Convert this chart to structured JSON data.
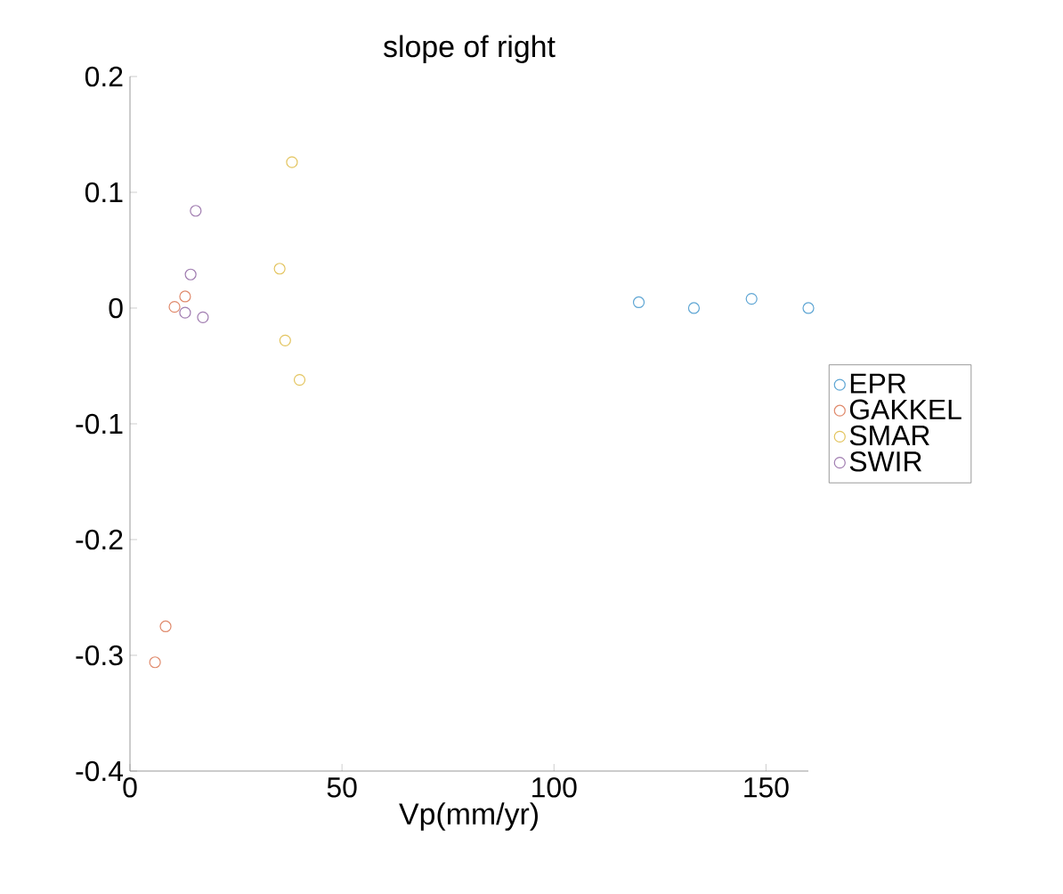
{
  "chart_data": {
    "type": "scatter",
    "title": "slope of right",
    "xlabel": "Vp(mm/yr)",
    "xlim": [
      0,
      160
    ],
    "xticks": [
      0,
      50,
      100,
      150
    ],
    "ylim": [
      -0.4,
      0.2
    ],
    "yticks": [
      -0.4,
      -0.3,
      -0.2,
      -0.1,
      0,
      0.1,
      0.2
    ],
    "marker": "circle",
    "legend": "right",
    "grid": false,
    "series": [
      {
        "name": "EPR",
        "color": "#5fa6d4",
        "x": [
          120,
          133,
          146.6,
          160
        ],
        "values": [
          0.005,
          0.0,
          0.008,
          0.0
        ]
      },
      {
        "name": "GAKKEL",
        "color": "#e08a6c",
        "x": [
          10.5,
          13,
          8.4,
          5.9
        ],
        "values": [
          0.001,
          0.01,
          -0.275,
          -0.306
        ]
      },
      {
        "name": "SMAR",
        "color": "#e3c45e",
        "x": [
          38.2,
          35.3,
          36.6,
          40
        ],
        "values": [
          0.126,
          0.034,
          -0.028,
          -0.062
        ]
      },
      {
        "name": "SWIR",
        "color": "#a07cb0",
        "x": [
          15.5,
          14.3,
          13,
          17.2
        ],
        "values": [
          0.084,
          0.029,
          -0.004,
          -0.008
        ]
      }
    ]
  }
}
